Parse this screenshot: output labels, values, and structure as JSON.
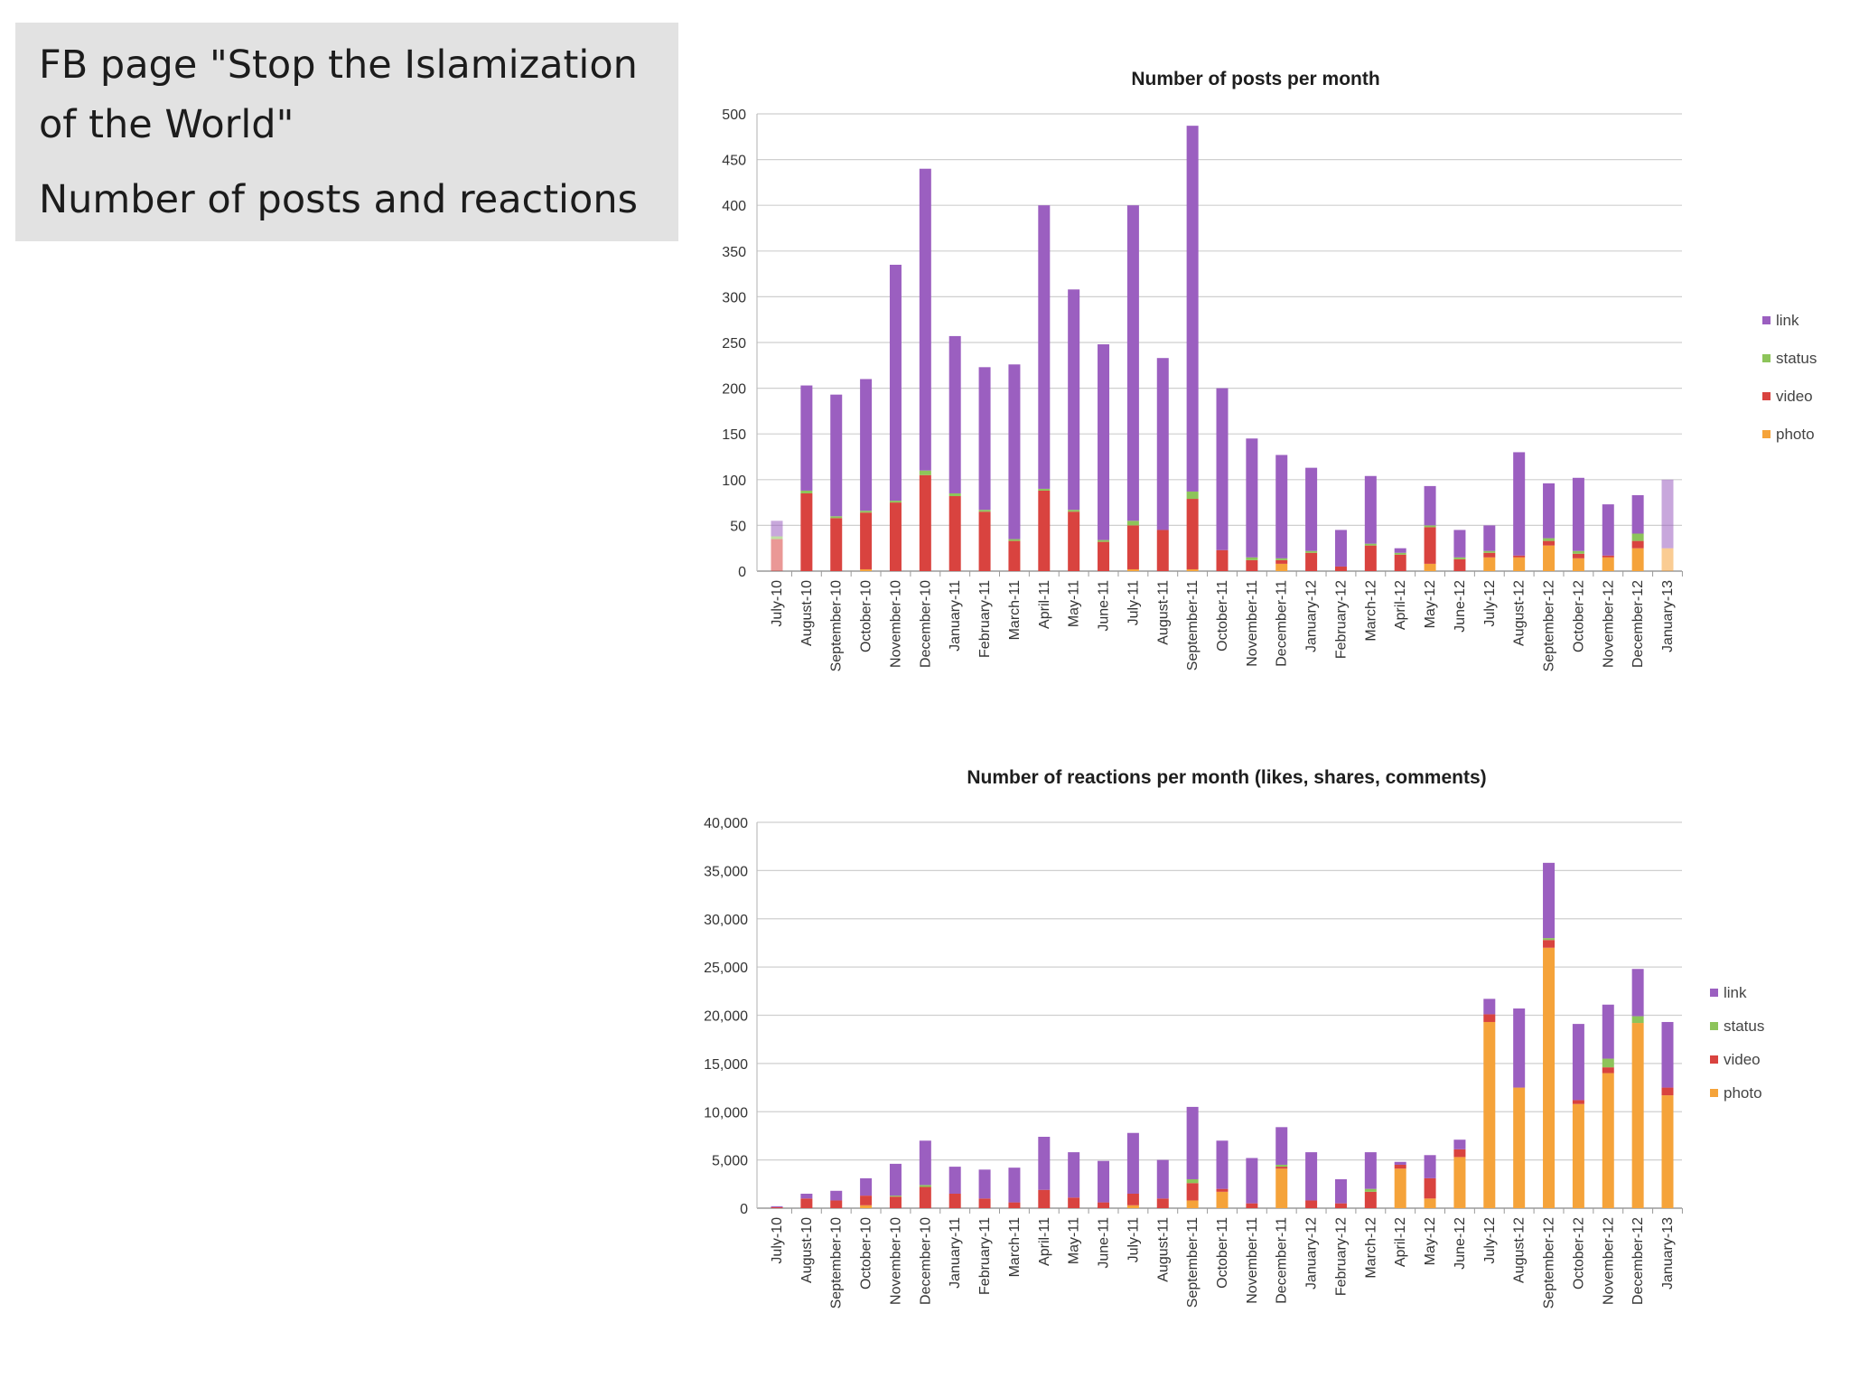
{
  "slide": {
    "title_line1": "FB page \"Stop the Islamization",
    "title_line2": "of the World\"",
    "subtitle": "Number of posts and reactions"
  },
  "colors": {
    "link": "#9b5fc0",
    "status": "#8dc45a",
    "video": "#d9433f",
    "photo": "#f5a33a"
  },
  "chart_data": [
    {
      "type": "bar",
      "stacked": true,
      "title": "Number of posts per month",
      "categories": [
        "July-10",
        "August-10",
        "September-10",
        "October-10",
        "November-10",
        "December-10",
        "January-11",
        "February-11",
        "March-11",
        "April-11",
        "May-11",
        "June-11",
        "July-11",
        "August-11",
        "September-11",
        "October-11",
        "November-11",
        "December-11",
        "January-12",
        "February-12",
        "March-12",
        "April-12",
        "May-12",
        "June-12",
        "July-12",
        "August-12",
        "September-12",
        "October-12",
        "November-12",
        "December-12",
        "January-13"
      ],
      "ylim": [
        0,
        500
      ],
      "yticks": [
        "0",
        "50",
        "100",
        "150",
        "200",
        "250",
        "300",
        "350",
        "400",
        "450",
        "500"
      ],
      "ytick_values": [
        0,
        50,
        100,
        150,
        200,
        250,
        300,
        350,
        400,
        450,
        500
      ],
      "legend": [
        "link",
        "status",
        "video",
        "photo"
      ],
      "legend_position": "right",
      "grid": true,
      "series": [
        {
          "name": "photo",
          "values": [
            0,
            0,
            0,
            2,
            0,
            0,
            0,
            0,
            0,
            0,
            0,
            0,
            2,
            0,
            2,
            0,
            0,
            8,
            0,
            0,
            0,
            0,
            8,
            0,
            15,
            15,
            28,
            14,
            15,
            25,
            25
          ]
        },
        {
          "name": "video",
          "values": [
            35,
            85,
            58,
            62,
            75,
            105,
            82,
            65,
            33,
            88,
            65,
            32,
            48,
            45,
            77,
            23,
            12,
            4,
            20,
            5,
            28,
            18,
            40,
            13,
            5,
            2,
            5,
            5,
            2,
            8,
            0
          ]
        },
        {
          "name": "status",
          "values": [
            3,
            3,
            2,
            2,
            2,
            5,
            3,
            2,
            2,
            2,
            2,
            2,
            5,
            0,
            8,
            0,
            3,
            2,
            2,
            0,
            2,
            2,
            2,
            2,
            2,
            0,
            3,
            3,
            0,
            8,
            0
          ]
        },
        {
          "name": "link",
          "values": [
            17,
            115,
            133,
            144,
            258,
            330,
            172,
            156,
            191,
            310,
            241,
            214,
            345,
            188,
            400,
            177,
            130,
            113,
            91,
            40,
            74,
            5,
            43,
            30,
            28,
            113,
            60,
            80,
            56,
            42,
            75
          ]
        }
      ]
    },
    {
      "type": "bar",
      "stacked": true,
      "title": "Number of reactions per month (likes, shares, comments)",
      "categories": [
        "July-10",
        "August-10",
        "September-10",
        "October-10",
        "November-10",
        "December-10",
        "January-11",
        "February-11",
        "March-11",
        "April-11",
        "May-11",
        "June-11",
        "July-11",
        "August-11",
        "September-11",
        "October-11",
        "November-11",
        "December-11",
        "January-12",
        "February-12",
        "March-12",
        "April-12",
        "May-12",
        "June-12",
        "July-12",
        "August-12",
        "September-12",
        "October-12",
        "November-12",
        "December-12",
        "January-13"
      ],
      "ylim": [
        0,
        40000
      ],
      "yticks": [
        "0",
        "5,000",
        "10,000",
        "15,000",
        "20,000",
        "25,000",
        "30,000",
        "35,000",
        "40,000"
      ],
      "ytick_values": [
        0,
        5000,
        10000,
        15000,
        20000,
        25000,
        30000,
        35000,
        40000
      ],
      "legend": [
        "link",
        "status",
        "video",
        "photo"
      ],
      "legend_position": "right",
      "grid": true,
      "series": [
        {
          "name": "photo",
          "values": [
            0,
            0,
            0,
            300,
            0,
            0,
            0,
            0,
            0,
            0,
            0,
            0,
            300,
            0,
            800,
            1700,
            0,
            4100,
            0,
            0,
            0,
            4100,
            1000,
            5300,
            19300,
            12500,
            27000,
            10800,
            14000,
            19200,
            11700
          ]
        },
        {
          "name": "video",
          "values": [
            100,
            1000,
            800,
            1000,
            1200,
            2200,
            1500,
            1000,
            600,
            1900,
            1100,
            600,
            1200,
            1000,
            1800,
            300,
            500,
            200,
            800,
            500,
            1700,
            400,
            2100,
            800,
            800,
            0,
            800,
            400,
            600,
            0,
            800
          ]
        },
        {
          "name": "status",
          "values": [
            0,
            0,
            0,
            0,
            100,
            200,
            0,
            0,
            0,
            0,
            0,
            0,
            0,
            0,
            400,
            0,
            0,
            200,
            0,
            0,
            300,
            0,
            0,
            0,
            0,
            0,
            200,
            0,
            900,
            700,
            0
          ]
        },
        {
          "name": "link",
          "values": [
            100,
            500,
            1000,
            1800,
            3300,
            4600,
            2800,
            3000,
            3600,
            5500,
            4700,
            4300,
            6300,
            4000,
            7500,
            5000,
            4700,
            3900,
            5000,
            2500,
            3800,
            300,
            2400,
            1000,
            1600,
            8200,
            7800,
            7900,
            5600,
            4900,
            6800
          ]
        }
      ]
    }
  ]
}
